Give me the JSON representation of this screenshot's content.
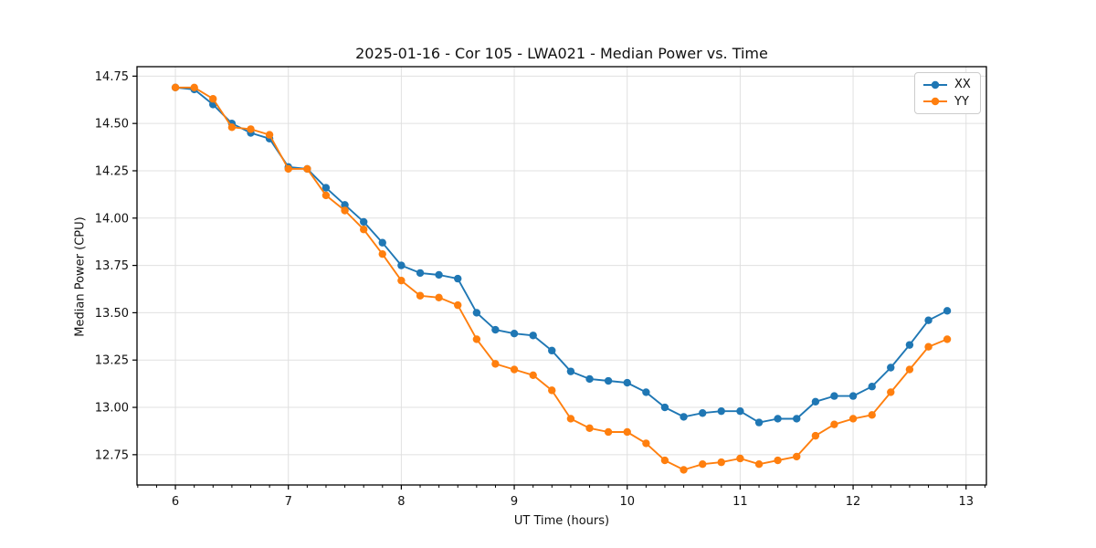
{
  "title": "2025-01-16 - Cor 105 - LWA021 - Median Power vs. Time",
  "legend": {
    "items": [
      {
        "label": "XX",
        "color": "#1f77b4"
      },
      {
        "label": "YY",
        "color": "#ff7f0e"
      }
    ]
  },
  "colors": {
    "series_blue": "#1f77b4",
    "series_orange": "#ff7f0e",
    "grid": "#e0e0e0",
    "spine": "#000000",
    "text": "#111111"
  },
  "chart_data": {
    "type": "line",
    "title": "2025-01-16 - Cor 105 - LWA021 - Median Power vs. Time",
    "xlabel": "UT Time (hours)",
    "ylabel": "Median Power (CPU)",
    "xlim": [
      5.66,
      13.18
    ],
    "ylim": [
      12.59,
      14.8
    ],
    "x_ticks": [
      6,
      7,
      8,
      9,
      10,
      11,
      12,
      13
    ],
    "y_ticks": [
      12.75,
      13.0,
      13.25,
      13.5,
      13.75,
      14.0,
      14.25,
      14.5,
      14.75
    ],
    "x_minor_step": 0.16667,
    "grid": true,
    "legend_position": "upper right",
    "marker": "circle",
    "x": [
      6.0,
      6.167,
      6.333,
      6.5,
      6.667,
      6.833,
      7.0,
      7.167,
      7.333,
      7.5,
      7.667,
      7.833,
      8.0,
      8.167,
      8.333,
      8.5,
      8.667,
      8.833,
      9.0,
      9.167,
      9.333,
      9.5,
      9.667,
      9.833,
      10.0,
      10.167,
      10.333,
      10.5,
      10.667,
      10.833,
      11.0,
      11.167,
      11.333,
      11.5,
      11.667,
      11.833,
      12.0,
      12.167,
      12.333,
      12.5,
      12.667,
      12.833
    ],
    "series": [
      {
        "name": "XX",
        "color": "#1f77b4",
        "values": [
          14.69,
          14.68,
          14.6,
          14.5,
          14.45,
          14.42,
          14.27,
          14.26,
          14.16,
          14.07,
          13.98,
          13.87,
          13.75,
          13.71,
          13.7,
          13.68,
          13.5,
          13.41,
          13.39,
          13.38,
          13.3,
          13.19,
          13.15,
          13.14,
          13.13,
          13.08,
          13.0,
          12.95,
          12.97,
          12.98,
          12.98,
          12.92,
          12.94,
          12.94,
          13.03,
          13.06,
          13.06,
          13.11,
          13.21,
          13.33,
          13.46,
          13.51
        ]
      },
      {
        "name": "YY",
        "color": "#ff7f0e",
        "values": [
          14.69,
          14.69,
          14.63,
          14.48,
          14.47,
          14.44,
          14.26,
          14.26,
          14.12,
          14.04,
          13.94,
          13.81,
          13.67,
          13.59,
          13.58,
          13.54,
          13.36,
          13.23,
          13.2,
          13.17,
          13.09,
          12.94,
          12.89,
          12.87,
          12.87,
          12.81,
          12.72,
          12.67,
          12.7,
          12.71,
          12.73,
          12.7,
          12.72,
          12.74,
          12.85,
          12.91,
          12.94,
          12.96,
          13.08,
          13.2,
          13.32,
          13.36
        ]
      }
    ]
  }
}
